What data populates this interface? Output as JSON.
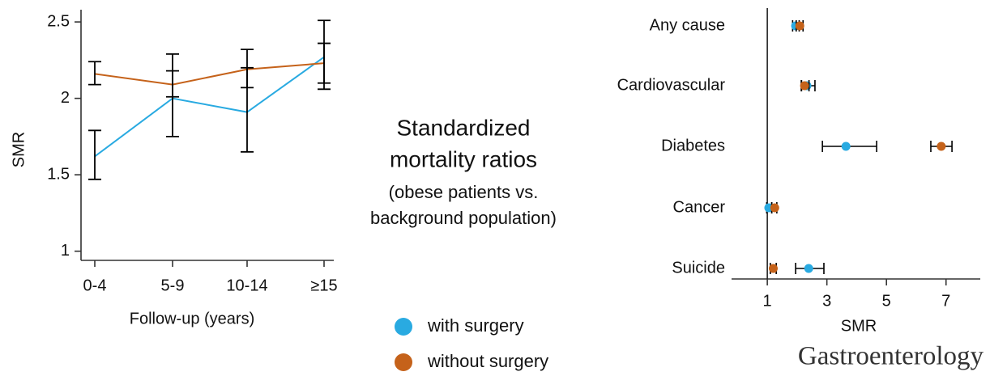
{
  "title_lines": [
    "Standardized",
    "mortality ratios"
  ],
  "subtitle_lines": [
    "(obese patients vs.",
    "background population)"
  ],
  "journal": "Gastroenterology",
  "chart_data": [
    {
      "type": "line",
      "xlabel": "Follow-up (years)",
      "ylabel": "SMR",
      "categories": [
        "0-4",
        "5-9",
        "10-14",
        "≥15"
      ],
      "series": [
        {
          "name": "with surgery",
          "color": "#29aae1",
          "values": [
            1.62,
            2.0,
            1.91,
            2.27
          ],
          "lower": [
            1.47,
            1.75,
            1.65,
            2.06
          ],
          "upper": [
            1.79,
            2.29,
            2.2,
            2.51
          ]
        },
        {
          "name": "without surgery",
          "color": "#c5621a",
          "values": [
            2.16,
            2.09,
            2.19,
            2.23
          ],
          "lower": [
            2.09,
            2.01,
            2.07,
            2.1
          ],
          "upper": [
            2.24,
            2.18,
            2.32,
            2.36
          ]
        }
      ],
      "error_bar_color": "#000000",
      "ylim": [
        0.94,
        2.58
      ],
      "yticks": [
        1,
        1.5,
        2,
        2.5
      ]
    },
    {
      "type": "forest",
      "xlabel": "SMR",
      "categories": [
        "Any cause",
        "Cardiovascular",
        "Diabetes",
        "Cancer",
        "Suicide"
      ],
      "series": [
        {
          "color": "#29aae1",
          "values": [
            1.95,
            2.33,
            3.64,
            1.05,
            2.39
          ],
          "lower": [
            1.85,
            2.14,
            2.85,
            0.98,
            1.95
          ],
          "upper": [
            2.07,
            2.6,
            4.67,
            1.15,
            2.9
          ]
        },
        {
          "color": "#c5621a",
          "values": [
            2.09,
            2.25,
            6.84,
            1.25,
            1.2
          ],
          "lower": [
            1.97,
            2.15,
            6.49,
            1.15,
            1.1
          ],
          "upper": [
            2.2,
            2.4,
            7.2,
            1.32,
            1.3
          ]
        }
      ],
      "error_bar_color": "#000000",
      "refline": 1,
      "xlim": [
        -0.2,
        8.15
      ],
      "xticks": [
        1,
        3,
        5,
        7
      ]
    }
  ]
}
